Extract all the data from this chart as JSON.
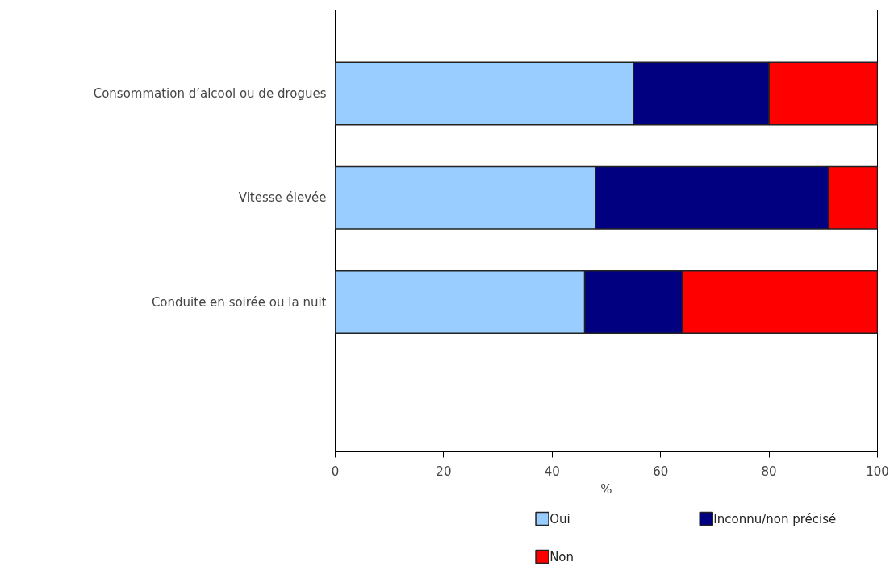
{
  "chart_data": {
    "type": "bar",
    "orientation": "horizontal",
    "stacked": true,
    "categories": [
      "Consommation d’alcool ou de drogues",
      "Vitesse élevée",
      "Conduite en soirée ou la nuit"
    ],
    "series": [
      {
        "name": "Oui",
        "color": "#99ccff",
        "values": [
          55,
          48,
          46
        ]
      },
      {
        "name": "Inconnu/non précisé",
        "color": "#000080",
        "values": [
          25,
          43,
          18
        ]
      },
      {
        "name": "Non",
        "color": "#ff0000",
        "values": [
          20,
          9,
          36
        ]
      }
    ],
    "xlabel": "%",
    "xlim": [
      0,
      100
    ],
    "xticks": [
      0,
      20,
      40,
      60,
      80,
      100
    ],
    "grid": false,
    "legend": "bottom"
  }
}
